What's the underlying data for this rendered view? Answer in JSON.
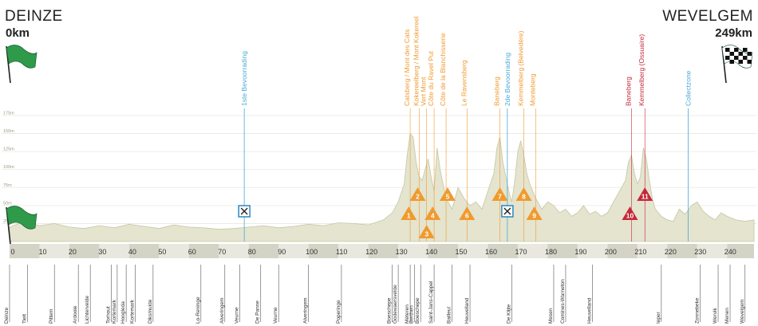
{
  "header": {
    "start_city": "DEINZE",
    "start_km": "0km",
    "finish_city": "WEVELGEM",
    "finish_km": "249km"
  },
  "chart_data": {
    "type": "area",
    "title": "",
    "xlabel": "",
    "ylabel": "",
    "x_unit": "km",
    "xlim": [
      0,
      249
    ],
    "ylim": [
      0,
      175
    ],
    "x_ticks": [
      0,
      10,
      20,
      30,
      40,
      50,
      60,
      70,
      80,
      90,
      100,
      110,
      120,
      130,
      140,
      150,
      160,
      170,
      180,
      190,
      200,
      210,
      220,
      230,
      240
    ],
    "y_ticks": [
      "25m",
      "50m",
      "75m",
      "100m",
      "125m",
      "150m",
      "175m"
    ],
    "y_tick_values": [
      25,
      50,
      75,
      100,
      125,
      150,
      175
    ],
    "colors": {
      "profile_fill": "#e4e4cf",
      "profile_line": "#c6c6a6",
      "climb": "#f09a2e",
      "climb_final": "#c4283a",
      "feed": "#4aa9d6",
      "band_dark": "#d3d3c6",
      "band_light": "#e8e8de"
    },
    "elevation_profile": {
      "x": [
        0,
        5,
        10,
        15,
        20,
        25,
        30,
        35,
        40,
        45,
        50,
        55,
        60,
        65,
        70,
        75,
        80,
        85,
        90,
        95,
        100,
        105,
        110,
        115,
        120,
        125,
        128,
        130,
        132,
        133,
        134,
        135,
        136,
        137,
        138,
        139,
        140,
        141,
        142,
        143,
        144,
        145,
        146,
        148,
        150,
        152,
        154,
        156,
        158,
        160,
        162,
        163,
        164,
        165,
        166,
        167,
        168,
        169,
        170,
        171,
        172,
        173,
        174,
        176,
        178,
        180,
        182,
        184,
        186,
        188,
        190,
        192,
        194,
        196,
        198,
        200,
        202,
        204,
        206,
        207,
        208,
        209,
        210,
        211,
        212,
        213,
        214,
        215,
        216,
        218,
        220,
        222,
        224,
        226,
        228,
        230,
        232,
        234,
        236,
        238,
        240,
        243,
        246,
        249
      ],
      "y": [
        20,
        28,
        22,
        25,
        20,
        18,
        22,
        19,
        24,
        21,
        18,
        23,
        20,
        19,
        17,
        18,
        20,
        22,
        19,
        21,
        24,
        22,
        26,
        25,
        23,
        30,
        40,
        55,
        80,
        120,
        150,
        145,
        110,
        90,
        85,
        100,
        115,
        90,
        70,
        130,
        100,
        80,
        60,
        45,
        75,
        60,
        50,
        55,
        45,
        70,
        95,
        130,
        145,
        110,
        90,
        70,
        55,
        85,
        125,
        140,
        120,
        95,
        80,
        60,
        45,
        55,
        50,
        40,
        45,
        35,
        40,
        50,
        38,
        42,
        35,
        40,
        55,
        70,
        85,
        110,
        120,
        95,
        80,
        90,
        130,
        115,
        85,
        60,
        45,
        35,
        30,
        28,
        45,
        38,
        50,
        55,
        42,
        35,
        30,
        40,
        35,
        30,
        28,
        30
      ]
    },
    "climbs": [
      {
        "num": "1",
        "km": 133.5,
        "row": "low",
        "final": false,
        "name": "Catsberg / Mont des Cats"
      },
      {
        "num": "2",
        "km": 136.5,
        "row": "high",
        "final": false,
        "name": "Kokereelberg / Mont Kokereel"
      },
      {
        "num": "3",
        "km": 139.5,
        "row": "bottom",
        "final": false,
        "name": "Vert Mont"
      },
      {
        "num": "4",
        "km": 141.5,
        "row": "low",
        "final": false,
        "name": "Côte du Ravel Put"
      },
      {
        "num": "5",
        "km": 146.5,
        "row": "high",
        "final": false,
        "name": "Côte de la Blanchisserie"
      },
      {
        "num": "6",
        "km": 153,
        "row": "low",
        "final": false,
        "name": "Le Ravensberg"
      },
      {
        "num": "7",
        "km": 164,
        "row": "high",
        "final": false,
        "name": "Baneberg"
      },
      {
        "num": "8",
        "km": 172,
        "row": "high",
        "final": false,
        "name": "Kemmelberg (Belvedère)"
      },
      {
        "num": "9",
        "km": 175.5,
        "row": "low",
        "final": false,
        "name": "Monteberg"
      },
      {
        "num": "10",
        "km": 207.5,
        "row": "low",
        "final": true,
        "name": "Baneberg"
      },
      {
        "num": "11",
        "km": 212.5,
        "row": "high",
        "final": true,
        "name": "Kemmelberg (Ossuaire)"
      }
    ],
    "climb_label_lines": [
      {
        "text": "Catsberg / Mont des Cats",
        "km": 134,
        "final": false
      },
      {
        "text": "Kokereelberg / Mont Kokereel",
        "km": 137,
        "final": false
      },
      {
        "text": "Vert Mont",
        "km": 139.5,
        "final": false
      },
      {
        "text": "Côte du Ravel Put",
        "km": 142,
        "final": false
      },
      {
        "text": "Côte de la Blanchisserie",
        "km": 146,
        "final": false
      },
      {
        "text": "Le Ravensberg",
        "km": 153,
        "final": false
      },
      {
        "text": "Baneberg",
        "km": 164,
        "final": false
      },
      {
        "text": "Kemmelberg (Belvedère)",
        "km": 172,
        "final": false
      },
      {
        "text": "Monteberg",
        "km": 176,
        "final": false
      },
      {
        "text": "Baneberg",
        "km": 208,
        "final": true
      },
      {
        "text": "Kemmelberg (Ossuaire)",
        "km": 212.5,
        "final": true
      }
    ],
    "feed_zones": [
      {
        "label": "1ste Bevoorrading",
        "km": 78.5,
        "icon": true
      },
      {
        "label": "2de Bevoorrading",
        "km": 166.5,
        "icon": true
      },
      {
        "label": "Collectzone",
        "km": 227,
        "icon": false
      }
    ],
    "places": [
      {
        "name": "Deinze",
        "km": 0
      },
      {
        "name": "Tielt",
        "km": 6
      },
      {
        "name": "Pittem",
        "km": 15
      },
      {
        "name": "Ardooie",
        "km": 23
      },
      {
        "name": "Lichtervelde",
        "km": 27
      },
      {
        "name": "Torhout",
        "km": 34
      },
      {
        "name": "Kortemark",
        "km": 36
      },
      {
        "name": "Hoogleda",
        "km": 39
      },
      {
        "name": "Kortemark",
        "km": 42
      },
      {
        "name": "Diksmuide",
        "km": 48
      },
      {
        "name": "Lo-Reninge",
        "km": 64
      },
      {
        "name": "Alveringem",
        "km": 72
      },
      {
        "name": "Veurne",
        "km": 77
      },
      {
        "name": "De Panne",
        "km": 84
      },
      {
        "name": "Veurne",
        "km": 90
      },
      {
        "name": "Alveringem",
        "km": 100
      },
      {
        "name": "Poperinge",
        "km": 111
      },
      {
        "name": "Boeschepe",
        "km": 128
      },
      {
        "name": "Godewaersvelde",
        "km": 130
      },
      {
        "name": "Mèteren",
        "km": 134
      },
      {
        "name": "Berthen",
        "km": 135.5
      },
      {
        "name": "Boeschepe",
        "km": 137.5
      },
      {
        "name": "Saint-Jans-Cappel",
        "km": 142
      },
      {
        "name": "Bailleul",
        "km": 148
      },
      {
        "name": "Heuvelland",
        "km": 154
      },
      {
        "name": "De Klijte",
        "km": 168
      },
      {
        "name": "Mesen",
        "km": 182
      },
      {
        "name": "Comines-Warneton",
        "km": 186
      },
      {
        "name": "Heuvelland",
        "km": 195
      },
      {
        "name": "Ieper",
        "km": 218
      },
      {
        "name": "Zonnebeke",
        "km": 231
      },
      {
        "name": "Wervik",
        "km": 237
      },
      {
        "name": "Menen",
        "km": 241
      },
      {
        "name": "Wevelgem",
        "km": 246
      }
    ]
  }
}
